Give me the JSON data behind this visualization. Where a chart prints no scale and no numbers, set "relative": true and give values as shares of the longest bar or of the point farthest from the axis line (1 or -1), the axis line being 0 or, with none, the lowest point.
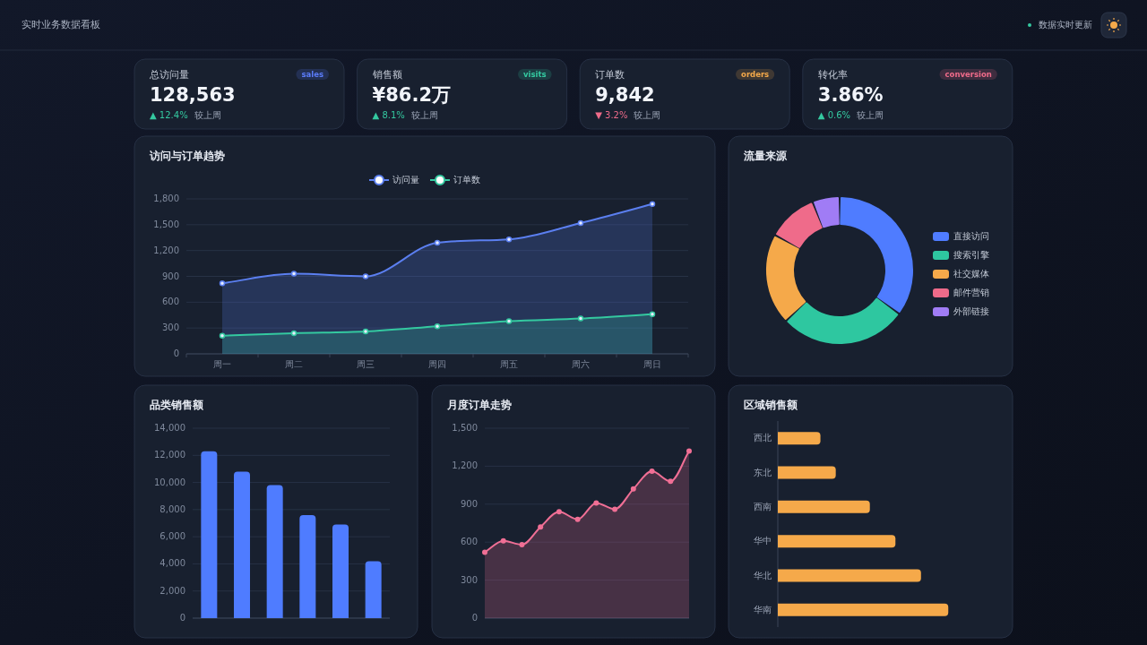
{
  "chart_data": [
    {
      "type": "other",
      "subtitle": "实时业务数据看板",
      "annotations": [
        "数据实时更新"
      ]
    },
    {
      "type": "other",
      "title": "总访问量",
      "annotations": [
        "sales",
        "128,563",
        "▲ 12.4%",
        "较上周"
      ],
      "colors": [
        "#5b7cfa",
        "#f1f4fa",
        "#34c9a0",
        "#9aa3b5"
      ]
    },
    {
      "type": "other",
      "title": "销售额",
      "annotations": [
        "visits",
        "¥86.2万",
        "▲ 8.1%",
        "较上周"
      ],
      "colors": [
        "#34c9a0",
        "#f1f4fa",
        "#34c9a0",
        "#9aa3b5"
      ]
    },
    {
      "type": "other",
      "title": "订单数",
      "annotations": [
        "orders",
        "9,842",
        "▼ 3.2%",
        "较上周"
      ],
      "colors": [
        "#f5a94a",
        "#f1f4fa",
        "#ef6b8a",
        "#9aa3b5"
      ]
    },
    {
      "type": "other",
      "title": "转化率",
      "annotations": [
        "conversion",
        "3.86%",
        "▲ 0.6%",
        "较上周"
      ],
      "colors": [
        "#ef6b8a",
        "#f1f4fa",
        "#34c9a0",
        "#9aa3b5"
      ]
    },
    {
      "type": "area",
      "title": "访问与订单趋势",
      "categories": [
        "周一",
        "周二",
        "周三",
        "周四",
        "周五",
        "周六",
        "周日"
      ],
      "series": [
        {
          "name": "访问量",
          "color": "#5b7ff0",
          "values": [
            820,
            930,
            900,
            1290,
            1330,
            1520,
            1740
          ]
        },
        {
          "name": "订单数",
          "color": "#34c9a0",
          "values": [
            210,
            240,
            260,
            320,
            380,
            410,
            460
          ]
        }
      ],
      "ylim": [
        0,
        1800
      ],
      "yticks": [
        0,
        300,
        600,
        900,
        {
          "value": 1200,
          "label": "1,200"
        },
        {
          "value": 1500,
          "label": "1,500"
        },
        {
          "value": 1800,
          "label": "1,800"
        }
      ],
      "grid": "y",
      "legend": "top",
      "marker": "circle"
    },
    {
      "type": "donut",
      "title": "流量来源",
      "categories": [
        "直接访问",
        "搜索引擎",
        "社交媒体",
        "邮件营销",
        "外部链接"
      ],
      "values": [
        35,
        28,
        20,
        11,
        6
      ],
      "colors": [
        "#4f7cff",
        "#2ec7a0",
        "#f5a94a",
        "#ef6b8a",
        "#a07cf5"
      ],
      "legend": "right"
    },
    {
      "type": "bar",
      "title": "品类销售额",
      "categories": [
        null,
        null,
        null,
        null,
        null,
        null
      ],
      "values": [
        12300,
        10800,
        9800,
        7600,
        6900,
        4200
      ],
      "color": "#4f7cff",
      "ylim": [
        0,
        14000
      ],
      "yticks": [
        0,
        {
          "value": 2000,
          "label": "2,000"
        },
        {
          "value": 4000,
          "label": "4,000"
        },
        {
          "value": 6000,
          "label": "6,000"
        },
        {
          "value": 8000,
          "label": "8,000"
        },
        {
          "value": 10000,
          "label": "10,000"
        },
        {
          "value": 12000,
          "label": "12,000"
        },
        {
          "value": 14000,
          "label": "14,000"
        }
      ],
      "grid": "y"
    },
    {
      "type": "area",
      "title": "月度订单走势",
      "categories": [
        null,
        null,
        null,
        null,
        null,
        null,
        null,
        null,
        null,
        null,
        null,
        null
      ],
      "series": [
        {
          "color": "#f06f95",
          "values": [
            520,
            610,
            580,
            720,
            840,
            780,
            910,
            860,
            1020,
            1160,
            1080,
            1320
          ]
        }
      ],
      "ylim": [
        0,
        1500
      ],
      "yticks": [
        0,
        300,
        600,
        900,
        {
          "value": 1200,
          "label": "1,200"
        },
        {
          "value": 1500,
          "label": "1,500"
        }
      ],
      "grid": "y",
      "marker": "circle"
    },
    {
      "type": "bar",
      "orientation": "horizontal",
      "relative": true,
      "title": "区域销售额",
      "categories": [
        "西北",
        "东北",
        "西南",
        "华中",
        "华北",
        "华南"
      ],
      "values": [
        0.25,
        0.34,
        0.54,
        0.69,
        0.84,
        1
      ],
      "color": "#f5a94a"
    }
  ]
}
